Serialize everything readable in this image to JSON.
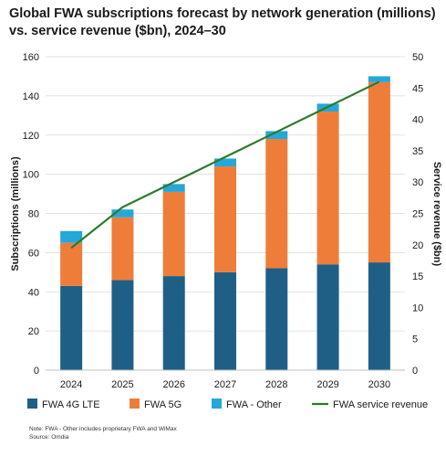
{
  "chart_data": {
    "title": "Global FWA subscriptions forecast by network generation (millions) vs. service revenue ($bn), 2024–30",
    "type": "bar",
    "stacked": true,
    "categories": [
      "2024",
      "2025",
      "2026",
      "2027",
      "2028",
      "2029",
      "2030"
    ],
    "series": [
      {
        "name": "FWA 4G LTE",
        "type": "bar",
        "axis": "left",
        "color": "#1f5f86",
        "values": [
          43,
          46,
          48,
          50,
          52,
          54,
          55
        ]
      },
      {
        "name": "FWA 5G",
        "type": "bar",
        "axis": "left",
        "color": "#ee7d3a",
        "values": [
          22,
          32,
          43,
          54,
          66,
          78,
          92
        ]
      },
      {
        "name": "FWA - Other",
        "type": "bar",
        "axis": "left",
        "color": "#26a7d9",
        "values": [
          6,
          4,
          4,
          4,
          4,
          4,
          3
        ]
      },
      {
        "name": "FWA service revenue",
        "type": "line",
        "axis": "right",
        "color": "#2d7a2d",
        "values": [
          19.5,
          26,
          30,
          34,
          38,
          42,
          46
        ]
      }
    ],
    "ylabel": "Subscriptions (millions)",
    "y2label": "Service revenue ($bn)",
    "ylim": [
      0,
      160
    ],
    "yticks": [
      0,
      20,
      40,
      60,
      80,
      100,
      120,
      140,
      160
    ],
    "y2lim": [
      0,
      50
    ],
    "y2ticks": [
      0,
      5,
      10,
      15,
      20,
      25,
      30,
      35,
      40,
      45,
      50
    ],
    "grid": true,
    "legend_position": "bottom"
  },
  "note": "Note: FWA - Other includes proprietary FWA and WiMax",
  "source": "Source: Omdia"
}
